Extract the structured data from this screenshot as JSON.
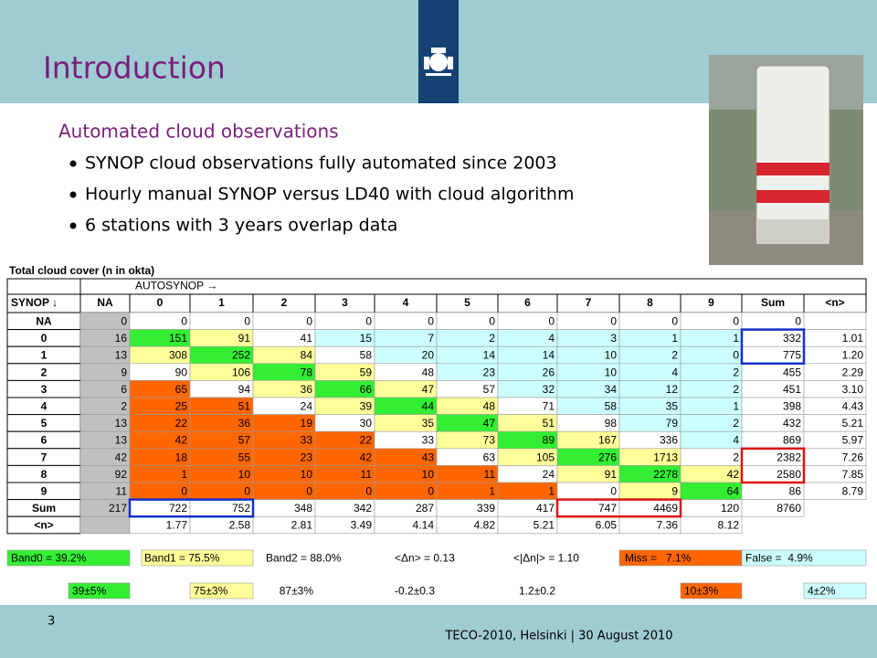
{
  "header": {
    "title": "Introduction"
  },
  "content": {
    "subtitle": "Automated cloud observations",
    "bullets": [
      "SYNOP cloud observations fully automated since 2003",
      "Hourly manual SYNOP versus LD40 with cloud algorithm",
      "6 stations with 3 years overlap data"
    ]
  },
  "table": {
    "title": "Total cloud cover (n in okta)",
    "top_header": "AUTOSYNOP →",
    "corner": "SYNOP ↓",
    "columns": [
      "NA",
      "0",
      "1",
      "2",
      "3",
      "4",
      "5",
      "6",
      "7",
      "8",
      "9",
      "Sum",
      "<n>"
    ],
    "rows": [
      {
        "label": "NA",
        "cells": [
          "0",
          "0",
          "0",
          "0",
          "0",
          "0",
          "0",
          "0",
          "0",
          "0",
          "0",
          "0",
          null
        ]
      },
      {
        "label": "0",
        "cells": [
          "16",
          "151",
          "91",
          "41",
          "15",
          "7",
          "2",
          "4",
          "3",
          "1",
          "1",
          "332",
          "1.01"
        ]
      },
      {
        "label": "1",
        "cells": [
          "13",
          "308",
          "252",
          "84",
          "58",
          "20",
          "14",
          "14",
          "10",
          "2",
          "0",
          "775",
          "1.20"
        ]
      },
      {
        "label": "2",
        "cells": [
          "9",
          "90",
          "106",
          "78",
          "59",
          "48",
          "23",
          "26",
          "10",
          "4",
          "2",
          "455",
          "2.29"
        ]
      },
      {
        "label": "3",
        "cells": [
          "6",
          "65",
          "94",
          "36",
          "66",
          "47",
          "57",
          "32",
          "34",
          "12",
          "2",
          "451",
          "3.10"
        ]
      },
      {
        "label": "4",
        "cells": [
          "2",
          "25",
          "51",
          "24",
          "39",
          "44",
          "48",
          "71",
          "58",
          "35",
          "1",
          "398",
          "4.43"
        ]
      },
      {
        "label": "5",
        "cells": [
          "13",
          "22",
          "36",
          "19",
          "30",
          "35",
          "47",
          "51",
          "98",
          "79",
          "2",
          "432",
          "5.21"
        ]
      },
      {
        "label": "6",
        "cells": [
          "13",
          "42",
          "57",
          "33",
          "22",
          "33",
          "73",
          "89",
          "167",
          "336",
          "4",
          "869",
          "5.97"
        ]
      },
      {
        "label": "7",
        "cells": [
          "42",
          "18",
          "55",
          "23",
          "42",
          "43",
          "63",
          "105",
          "276",
          "1713",
          "2",
          "2382",
          "7.26"
        ]
      },
      {
        "label": "8",
        "cells": [
          "92",
          "1",
          "10",
          "10",
          "11",
          "10",
          "11",
          "24",
          "91",
          "2278",
          "42",
          "2580",
          "7.85"
        ]
      },
      {
        "label": "9",
        "cells": [
          "11",
          "0",
          "0",
          "0",
          "0",
          "0",
          "1",
          "1",
          "0",
          "9",
          "64",
          "86",
          "8.79"
        ]
      },
      {
        "label": "Sum",
        "cells": [
          "217",
          "722",
          "752",
          "348",
          "342",
          "287",
          "339",
          "417",
          "747",
          "4469",
          "120",
          "8760"
        ]
      },
      {
        "label": "<n>",
        "cells": [
          null,
          "1.77",
          "2.58",
          "2.81",
          "3.49",
          "4.14",
          "4.82",
          "5.21",
          "6.05",
          "7.36",
          "8.12"
        ]
      }
    ]
  },
  "legend": {
    "row1": [
      "Band0 = 39.2%",
      "Band1 = 75.5%",
      "Band2 = 88.0%",
      "<Δn> = 0.13",
      "<|Δn|> = 1.10",
      "Miss =   7.1%",
      "False =  4.9%"
    ],
    "row2": [
      "39±5%",
      "75±3%",
      "87±3%",
      "-0.2±0.3",
      "1.2±0.2",
      "10±3%",
      "4±2%"
    ]
  },
  "footer": {
    "page": "3",
    "text": "TECO-2010, Helsinki | 30 August 2010"
  }
}
